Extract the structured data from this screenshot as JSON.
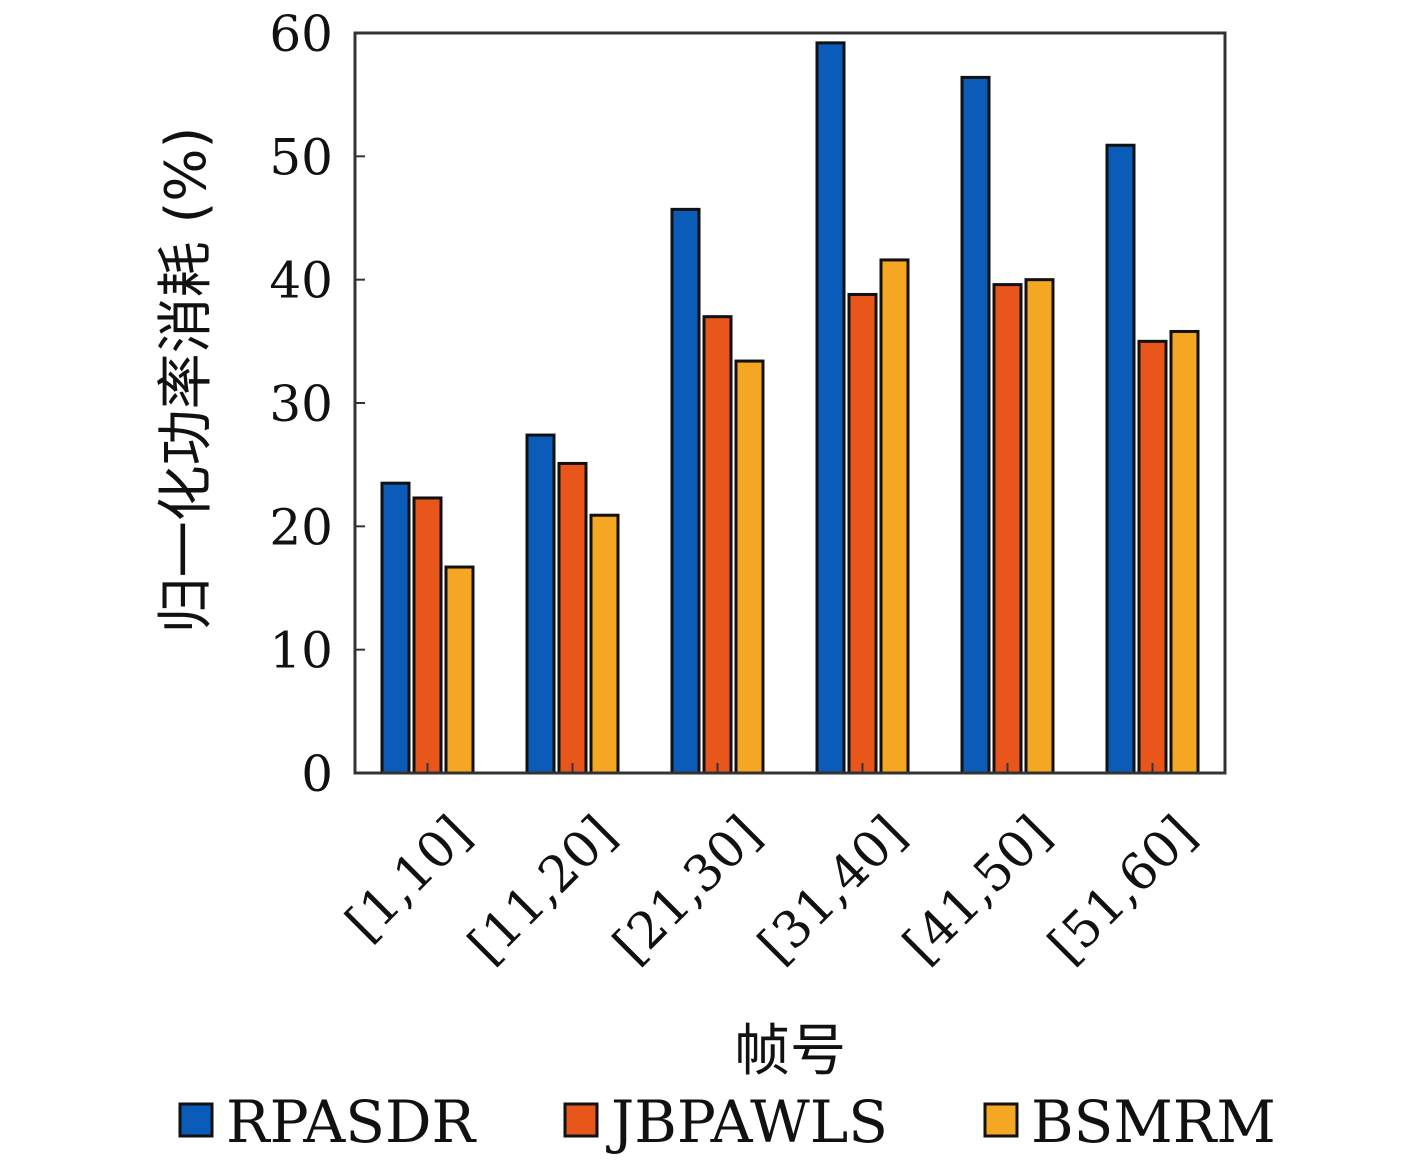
{
  "chart_data": {
    "type": "bar",
    "title": "",
    "xlabel": "帧号",
    "ylabel": "归一化功率消耗 (%)",
    "ylim": [
      0,
      60
    ],
    "yticks": [
      0,
      10,
      20,
      30,
      40,
      50,
      60
    ],
    "categories": [
      "[1,10]",
      "[11,20]",
      "[21,30]",
      "[31,40]",
      "[41,50]",
      "[51,60]"
    ],
    "series": [
      {
        "name": "RPASDR",
        "color": "#0a5cb8",
        "values": [
          23.5,
          27.4,
          45.7,
          59.2,
          56.4,
          50.9
        ]
      },
      {
        "name": "JBPAWLS",
        "color": "#e8561c",
        "values": [
          22.3,
          25.1,
          37.0,
          38.8,
          39.6,
          35.0
        ]
      },
      {
        "name": "BSMRM",
        "color": "#f5a623",
        "values": [
          16.7,
          20.9,
          33.4,
          41.6,
          40.0,
          35.8
        ]
      }
    ],
    "grid": false,
    "legend_position": "bottom"
  }
}
